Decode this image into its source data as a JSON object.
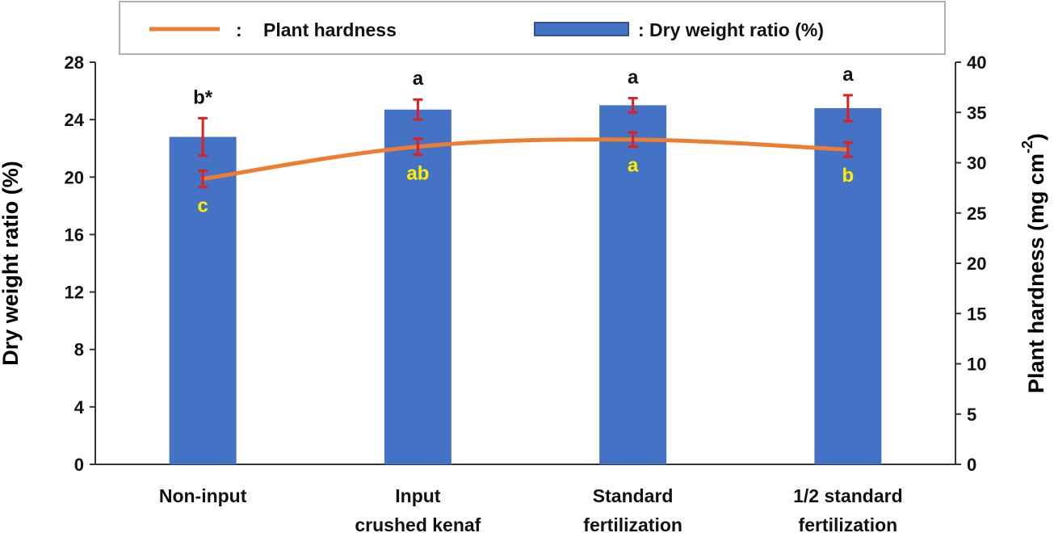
{
  "chart_data": {
    "type": "bar+line",
    "categories": [
      "Non-input",
      "Input\ncrushed kenaf",
      "Standard\nfertilization",
      "1/2 standard\nfertilization"
    ],
    "bar_series": {
      "name": ": Dry weight ratio (%)",
      "values": [
        22.8,
        24.7,
        25.0,
        24.8
      ],
      "errors": [
        1.3,
        0.7,
        0.5,
        0.9
      ],
      "letters": [
        "b*",
        "a",
        "a",
        "a"
      ],
      "color": "#4472c4",
      "axis": "left"
    },
    "line_series": {
      "name": "Plant hardness",
      "legend_colon": ":",
      "values": [
        28.4,
        31.6,
        32.3,
        31.3
      ],
      "errors": [
        0.8,
        0.8,
        0.7,
        0.7
      ],
      "letters": [
        "c",
        "ab",
        "a",
        "b"
      ],
      "color": "#ed7d31",
      "axis": "right"
    },
    "error_bar_color": "#e02020",
    "bar_letter_color": "#111111",
    "line_letter_color": "#ffee00",
    "ylabel": "Dry weight ratio (%)",
    "y2label_main": "Plant hardness (mg cm",
    "y2label_sup": "-2",
    "y2label_close": ")",
    "ylim": [
      0,
      28
    ],
    "yticks": [
      0,
      4,
      8,
      12,
      16,
      20,
      24,
      28
    ],
    "y2lim": [
      0,
      40
    ],
    "y2ticks": [
      0,
      5,
      10,
      15,
      20,
      25,
      30,
      35,
      40
    ],
    "legend_position": "top",
    "grid": false
  }
}
